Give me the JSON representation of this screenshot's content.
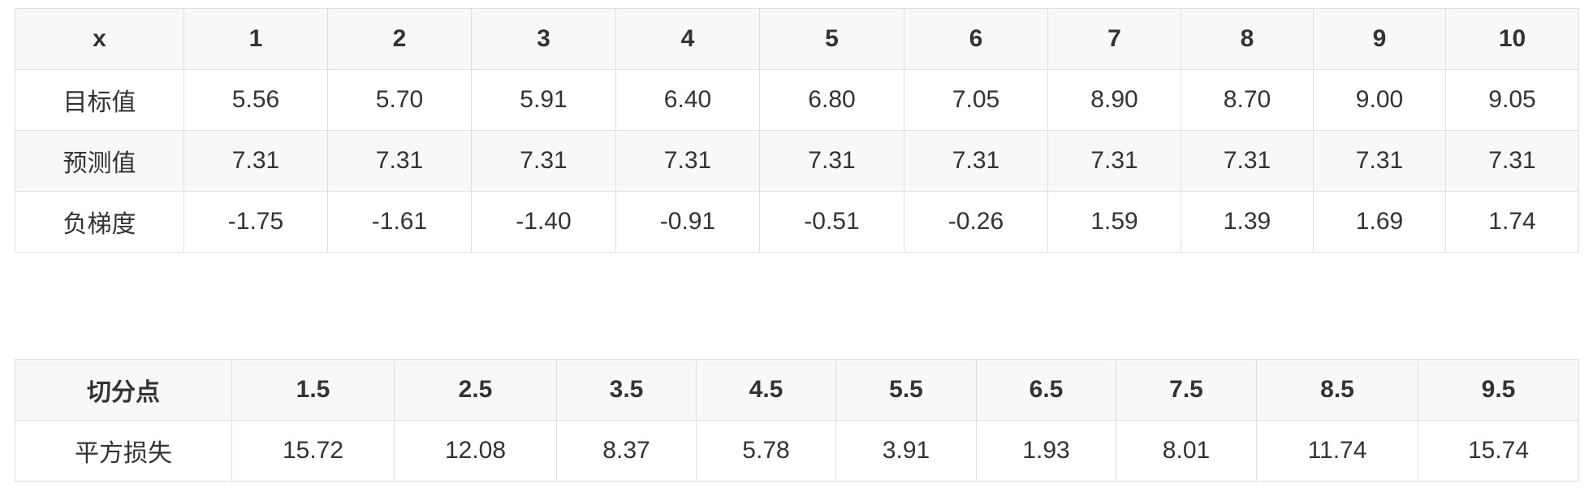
{
  "table1": {
    "header": [
      "x",
      "1",
      "2",
      "3",
      "4",
      "5",
      "6",
      "7",
      "8",
      "9",
      "10"
    ],
    "rows": [
      [
        "目标值",
        "5.56",
        "5.70",
        "5.91",
        "6.40",
        "6.80",
        "7.05",
        "8.90",
        "8.70",
        "9.00",
        "9.05"
      ],
      [
        "预测值",
        "7.31",
        "7.31",
        "7.31",
        "7.31",
        "7.31",
        "7.31",
        "7.31",
        "7.31",
        "7.31",
        "7.31"
      ],
      [
        "负梯度",
        "-1.75",
        "-1.61",
        "-1.40",
        "-0.91",
        "-0.51",
        "-0.26",
        "1.59",
        "1.39",
        "1.69",
        "1.74"
      ]
    ]
  },
  "table2": {
    "header": [
      "切分点",
      "1.5",
      "2.5",
      "3.5",
      "4.5",
      "5.5",
      "6.5",
      "7.5",
      "8.5",
      "9.5"
    ],
    "rows": [
      [
        "平方损失",
        "15.72",
        "12.08",
        "8.37",
        "5.78",
        "3.91",
        "1.93",
        "8.01",
        "11.74",
        "15.74"
      ]
    ]
  }
}
